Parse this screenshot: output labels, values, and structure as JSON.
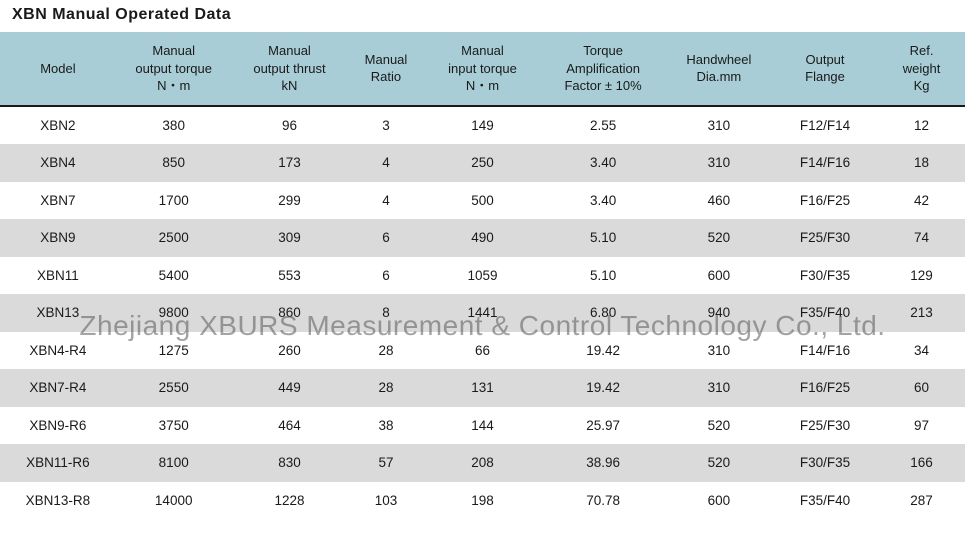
{
  "title": "XBN  Manual Operated Data",
  "watermark": "Zhejiang XBURS Measurement & Control Technology Co., Ltd.",
  "table": {
    "type": "table",
    "header_bg": "#a8cdd7",
    "row_odd_bg": "#ffffff",
    "row_even_bg": "#dadada",
    "header_border_bottom": "#1a1a1a",
    "text_color": "#1a1a1a",
    "header_fontsize": 13,
    "cell_fontsize": 13.5,
    "columns": [
      {
        "label": "Model",
        "width_pct": 12
      },
      {
        "label": "Manual\noutput torque\nN・m",
        "width_pct": 12
      },
      {
        "label": "Manual\noutput thrust\nkN",
        "width_pct": 12
      },
      {
        "label": "Manual\nRatio",
        "width_pct": 8
      },
      {
        "label": "Manual\ninput torque\nN・m",
        "width_pct": 12
      },
      {
        "label": "Torque\nAmplification\nFactor ± 10%",
        "width_pct": 13
      },
      {
        "label": "Handwheel\nDia.mm",
        "width_pct": 11
      },
      {
        "label": "Output\nFlange",
        "width_pct": 11
      },
      {
        "label": "Ref.\nweight\nKg",
        "width_pct": 9
      }
    ],
    "rows": [
      [
        "XBN2",
        "380",
        "96",
        "3",
        "149",
        "2.55",
        "310",
        "F12/F14",
        "12"
      ],
      [
        "XBN4",
        "850",
        "173",
        "4",
        "250",
        "3.40",
        "310",
        "F14/F16",
        "18"
      ],
      [
        "XBN7",
        "1700",
        "299",
        "4",
        "500",
        "3.40",
        "460",
        "F16/F25",
        "42"
      ],
      [
        "XBN9",
        "2500",
        "309",
        "6",
        "490",
        "5.10",
        "520",
        "F25/F30",
        "74"
      ],
      [
        "XBN11",
        "5400",
        "553",
        "6",
        "1059",
        "5.10",
        "600",
        "F30/F35",
        "129"
      ],
      [
        "XBN13",
        "9800",
        "860",
        "8",
        "1441",
        "6.80",
        "940",
        "F35/F40",
        "213"
      ],
      [
        "XBN4-R4",
        "1275",
        "260",
        "28",
        "66",
        "19.42",
        "310",
        "F14/F16",
        "34"
      ],
      [
        "XBN7-R4",
        "2550",
        "449",
        "28",
        "131",
        "19.42",
        "310",
        "F16/F25",
        "60"
      ],
      [
        "XBN9-R6",
        "3750",
        "464",
        "38",
        "144",
        "25.97",
        "520",
        "F25/F30",
        "97"
      ],
      [
        "XBN11-R6",
        "8100",
        "830",
        "57",
        "208",
        "38.96",
        "520",
        "F30/F35",
        "166"
      ],
      [
        "XBN13-R8",
        "14000",
        "1228",
        "103",
        "198",
        "70.78",
        "600",
        "F35/F40",
        "287"
      ]
    ]
  }
}
